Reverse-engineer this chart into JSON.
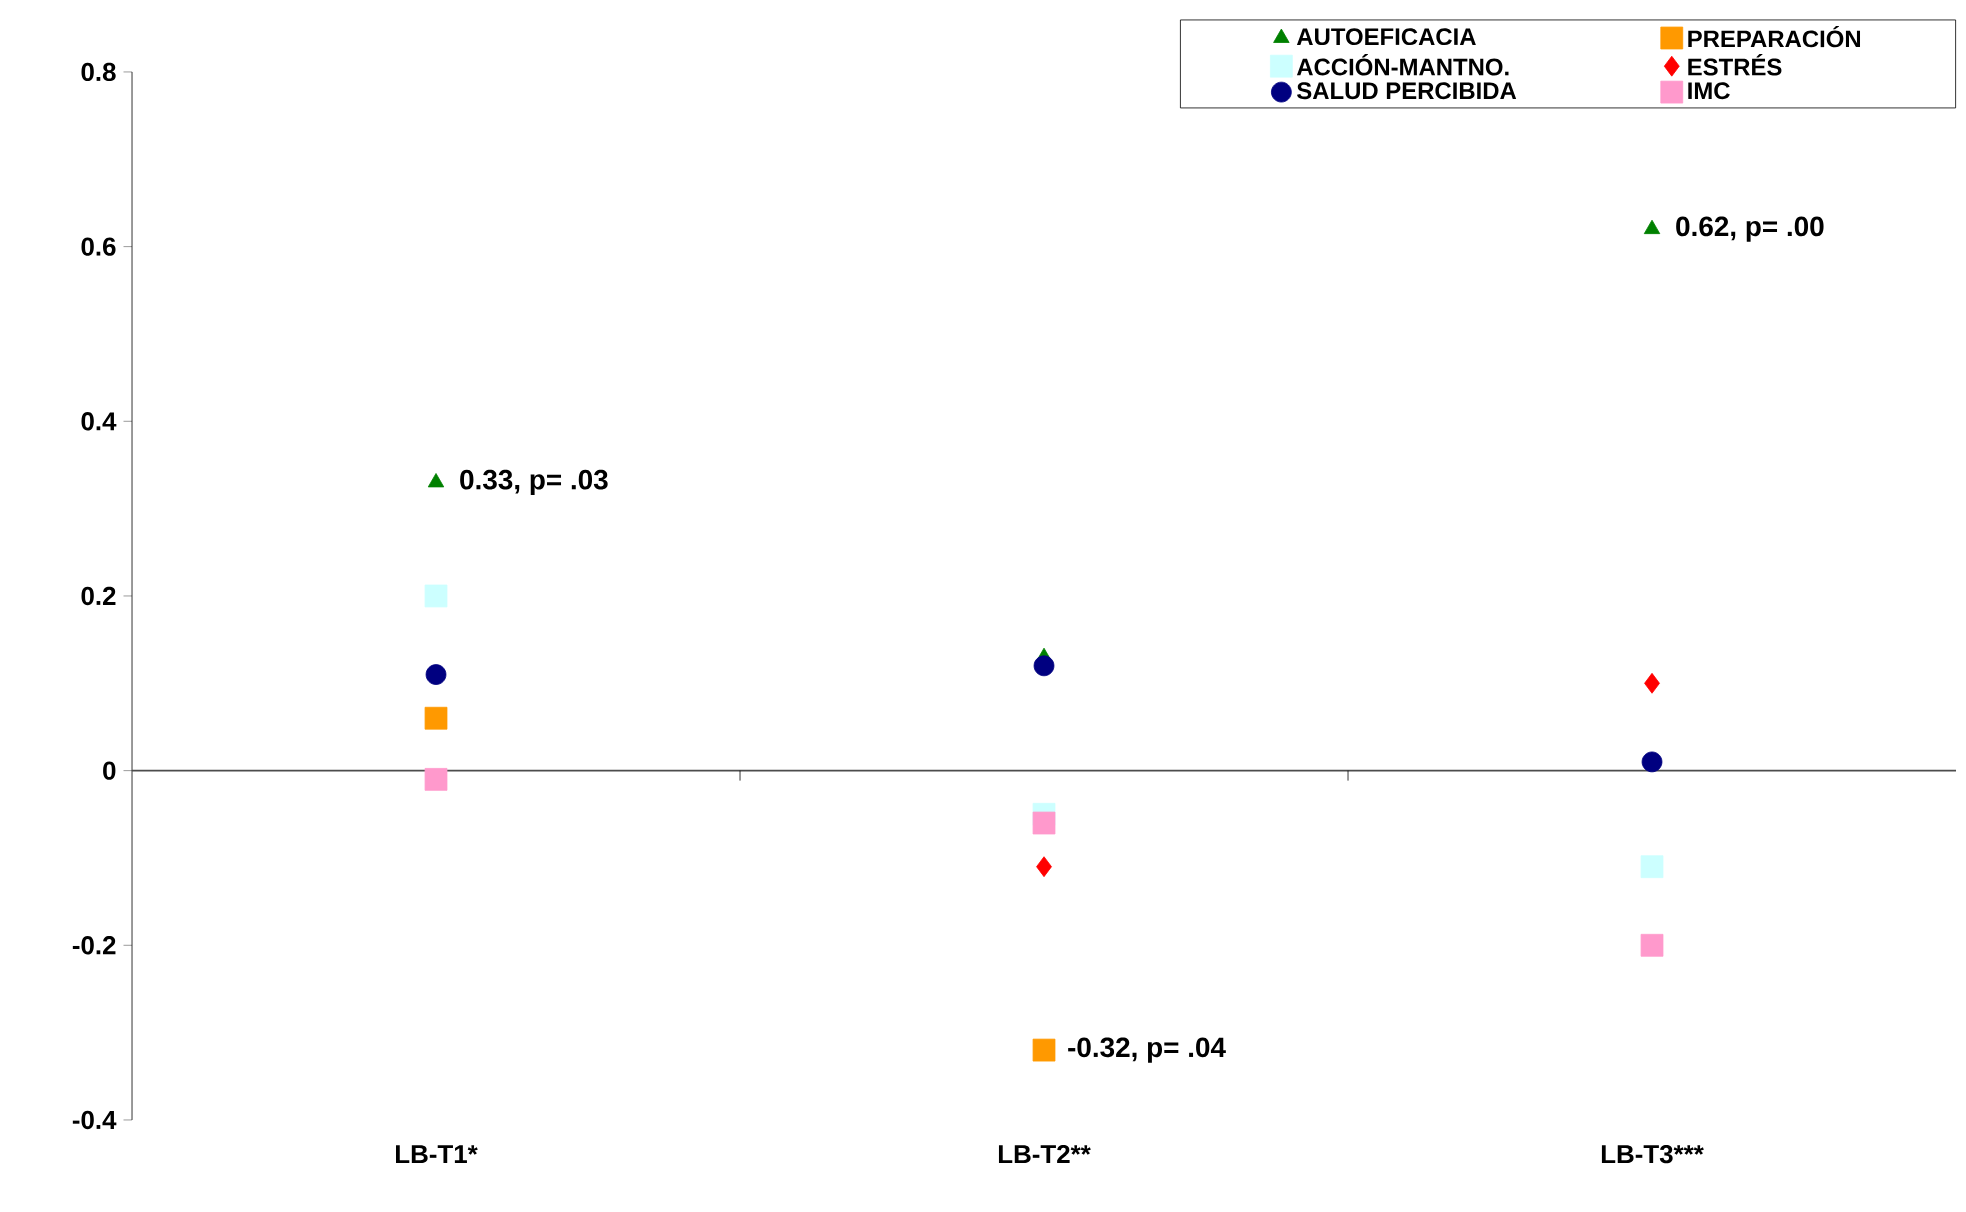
{
  "chart_data": {
    "type": "scatter",
    "categories": [
      "LB-T1*",
      "LB-T2**",
      "LB-T3***"
    ],
    "series": [
      {
        "name": "AUTOEFICACIA",
        "color": "#008000",
        "marker": "triangle",
        "values": [
          0.33,
          0.13,
          0.62
        ]
      },
      {
        "name": "PREPARACIÓN",
        "color": "#ff9900",
        "marker": "square",
        "values": [
          0.06,
          -0.32,
          null
        ]
      },
      {
        "name": "ACCIÓN-MANTNO.",
        "color": "#ccffff",
        "marker": "square",
        "values": [
          0.2,
          -0.05,
          -0.11
        ]
      },
      {
        "name": "ESTRÉS",
        "color": "#ff0000",
        "marker": "diamond",
        "values": [
          null,
          -0.11,
          0.1
        ]
      },
      {
        "name": "SALUD PERCIBIDA",
        "color": "#000080",
        "marker": "circle",
        "values": [
          0.11,
          0.12,
          0.01
        ]
      },
      {
        "name": "IMC",
        "color": "#ff99cc",
        "marker": "square",
        "values": [
          -0.01,
          -0.06,
          -0.2
        ]
      }
    ],
    "ylim": [
      -0.4,
      0.8
    ],
    "yticks": [
      -0.4,
      -0.2,
      0,
      0.2,
      0.4,
      0.6,
      0.8
    ],
    "legend": "top right",
    "annotations": [
      {
        "text": "0.33, p= .03",
        "x": "LB-T1*",
        "y": 0.33
      },
      {
        "text": "-0.32, p= .04",
        "x": "LB-T2**",
        "y": -0.32
      },
      {
        "text": "0.62, p= .00",
        "x": "LB-T3***",
        "y": 0.62
      }
    ]
  }
}
